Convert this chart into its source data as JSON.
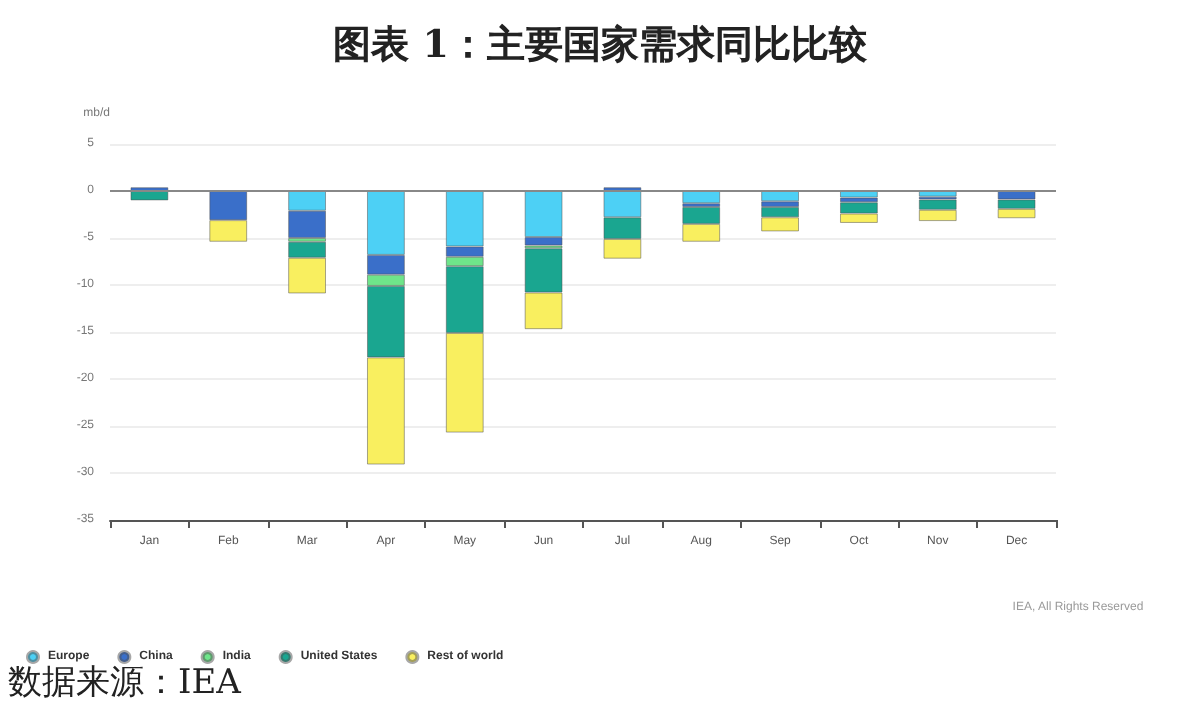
{
  "chart_data": {
    "type": "bar",
    "title": "图表 1：主要国家需求同比比较",
    "ylabel": "mb/d",
    "annotations": [
      "IEA, All Rights Reserved",
      "数据来源：IEA"
    ],
    "categories": [
      "Jan",
      "Feb",
      "Mar",
      "Apr",
      "May",
      "Jun",
      "Jul",
      "Aug",
      "Sep",
      "Oct",
      "Nov",
      "Dec"
    ],
    "stacked": true,
    "series": [
      {
        "name": "Europe",
        "color": "#4dd0f5",
        "values": [
          null,
          null,
          -2.1,
          -6.8,
          -5.9,
          -4.9,
          -2.8,
          -1.3,
          -1.1,
          -0.7,
          -0.6,
          null
        ]
      },
      {
        "name": "China",
        "color": "#3a6fc9",
        "values": [
          0.4,
          -3.1,
          -2.9,
          -2.1,
          -1.1,
          -0.9,
          0.4,
          -0.4,
          -0.6,
          -0.5,
          -0.3,
          -0.9
        ]
      },
      {
        "name": "India",
        "color": "#6ee58a",
        "values": [
          null,
          null,
          -0.4,
          -1.2,
          -1.0,
          -0.3,
          null,
          null,
          null,
          null,
          null,
          null
        ]
      },
      {
        "name": "United States",
        "color": "#1aa690",
        "values": [
          -1.0,
          null,
          -1.7,
          -7.6,
          -7.1,
          -4.7,
          -2.3,
          -1.8,
          -1.1,
          -1.2,
          -1.1,
          -1.0
        ]
      },
      {
        "name": "Rest of world",
        "color": "#f9ef5f",
        "values": [
          null,
          -2.3,
          -3.8,
          -11.4,
          -10.6,
          -3.9,
          -2.1,
          -1.9,
          -1.5,
          -1.0,
          -1.2,
          -1.0
        ]
      }
    ],
    "ylim": [
      -35,
      5
    ],
    "yticks": [
      5,
      0,
      -5,
      -10,
      -15,
      -20,
      -25,
      -30,
      -35
    ],
    "ref_lines": [
      {
        "axis": "y",
        "value": 0,
        "color": "#888888"
      }
    ],
    "grid": "y",
    "legend": "bottom left"
  }
}
